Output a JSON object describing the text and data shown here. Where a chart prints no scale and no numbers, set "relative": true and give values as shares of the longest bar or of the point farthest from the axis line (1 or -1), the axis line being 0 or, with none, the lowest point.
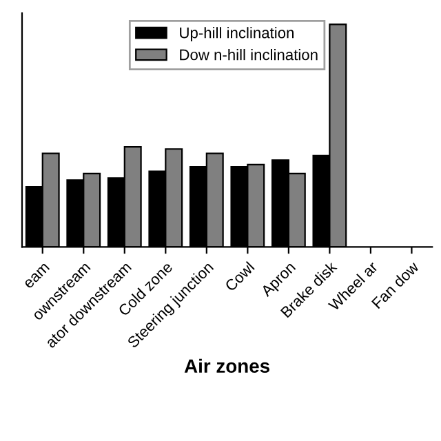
{
  "chart_data": {
    "type": "bar",
    "relative": true,
    "xlabel": "Air zones",
    "categories": [
      "eam",
      "ownstream",
      "ator downstream",
      "Cold zone",
      "Steering junction",
      "Cowl",
      "Apron",
      "Brake disk",
      "Wheel ar",
      "Fan dow"
    ],
    "series": [
      {
        "name": "Up-hill inclination",
        "color": "#000000",
        "values": [
          0.27,
          0.3,
          0.31,
          0.34,
          0.36,
          0.36,
          0.39,
          0.41,
          null,
          null
        ]
      },
      {
        "name": "Dow n-hill inclination",
        "color": "#808080",
        "values": [
          0.42,
          0.33,
          0.45,
          0.44,
          0.42,
          0.37,
          0.33,
          1.0,
          null,
          null
        ]
      }
    ],
    "legend": "top"
  }
}
